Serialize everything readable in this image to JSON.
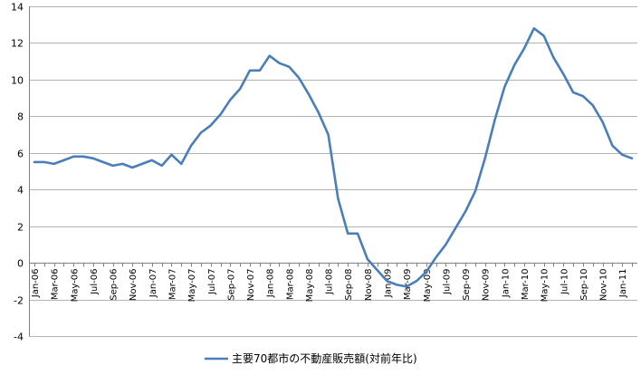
{
  "chart_data": {
    "type": "line",
    "title": "",
    "xlabel": "",
    "ylabel": "",
    "ylim": [
      -4,
      14
    ],
    "yticks": [
      -4,
      -2,
      0,
      2,
      4,
      6,
      8,
      10,
      12,
      14
    ],
    "grid": "horizontal",
    "legend_position": "bottom",
    "x": [
      "Jan-06",
      "Feb-06",
      "Mar-06",
      "Apr-06",
      "May-06",
      "Jun-06",
      "Jul-06",
      "Aug-06",
      "Sep-06",
      "Oct-06",
      "Nov-06",
      "Dec-06",
      "Jan-07",
      "Feb-07",
      "Mar-07",
      "Apr-07",
      "May-07",
      "Jun-07",
      "Jul-07",
      "Aug-07",
      "Sep-07",
      "Oct-07",
      "Nov-07",
      "Dec-07",
      "Jan-08",
      "Feb-08",
      "Mar-08",
      "Apr-08",
      "May-08",
      "Jun-08",
      "Jul-08",
      "Aug-08",
      "Sep-08",
      "Oct-08",
      "Nov-08",
      "Dec-08",
      "Jan-09",
      "Feb-09",
      "Mar-09",
      "Apr-09",
      "May-09",
      "Jun-09",
      "Jul-09",
      "Aug-09",
      "Sep-09",
      "Oct-09",
      "Nov-09",
      "Dec-09",
      "Jan-10",
      "Feb-10",
      "Mar-10",
      "Apr-10",
      "May-10",
      "Jun-10",
      "Jul-10",
      "Aug-10",
      "Sep-10",
      "Oct-10",
      "Nov-10",
      "Dec-10",
      "Jan-11",
      "Feb-11"
    ],
    "x_tick_labels": [
      "Jan-06",
      "Mar-06",
      "May-06",
      "Jul-06",
      "Sep-06",
      "Nov-06",
      "Jan-07",
      "Mar-07",
      "May-07",
      "Jul-07",
      "Sep-07",
      "Nov-07",
      "Jan-08",
      "Mar-08",
      "May-08",
      "Jul-08",
      "Sep-08",
      "Nov-08",
      "Jan-09",
      "Mar-09",
      "May-09",
      "Jul-09",
      "Sep-09",
      "Nov-09",
      "Jan-10",
      "Mar-10",
      "May-10",
      "Jul-10",
      "Sep-10",
      "Nov-10",
      "Jan-11"
    ],
    "series": [
      {
        "name": "主要70都市の不動産販売額(対前年比)",
        "color": "#4a7ebb",
        "values": [
          5.5,
          5.5,
          5.4,
          5.6,
          5.8,
          5.8,
          5.7,
          5.5,
          5.3,
          5.4,
          5.2,
          5.4,
          5.6,
          5.3,
          5.9,
          5.4,
          6.4,
          7.1,
          7.5,
          8.1,
          8.9,
          9.5,
          10.5,
          10.5,
          11.3,
          10.9,
          10.7,
          10.1,
          9.2,
          8.2,
          7.0,
          3.5,
          1.6,
          1.6,
          0.2,
          -0.4,
          -1.0,
          -1.2,
          -1.3,
          -1.0,
          -0.5,
          0.3,
          1.0,
          1.9,
          2.8,
          3.9,
          5.7,
          7.8,
          9.6,
          10.8,
          11.7,
          12.8,
          12.4,
          11.2,
          10.3,
          9.3,
          9.1,
          8.6,
          7.7,
          6.4,
          5.9,
          5.7
        ]
      }
    ]
  }
}
